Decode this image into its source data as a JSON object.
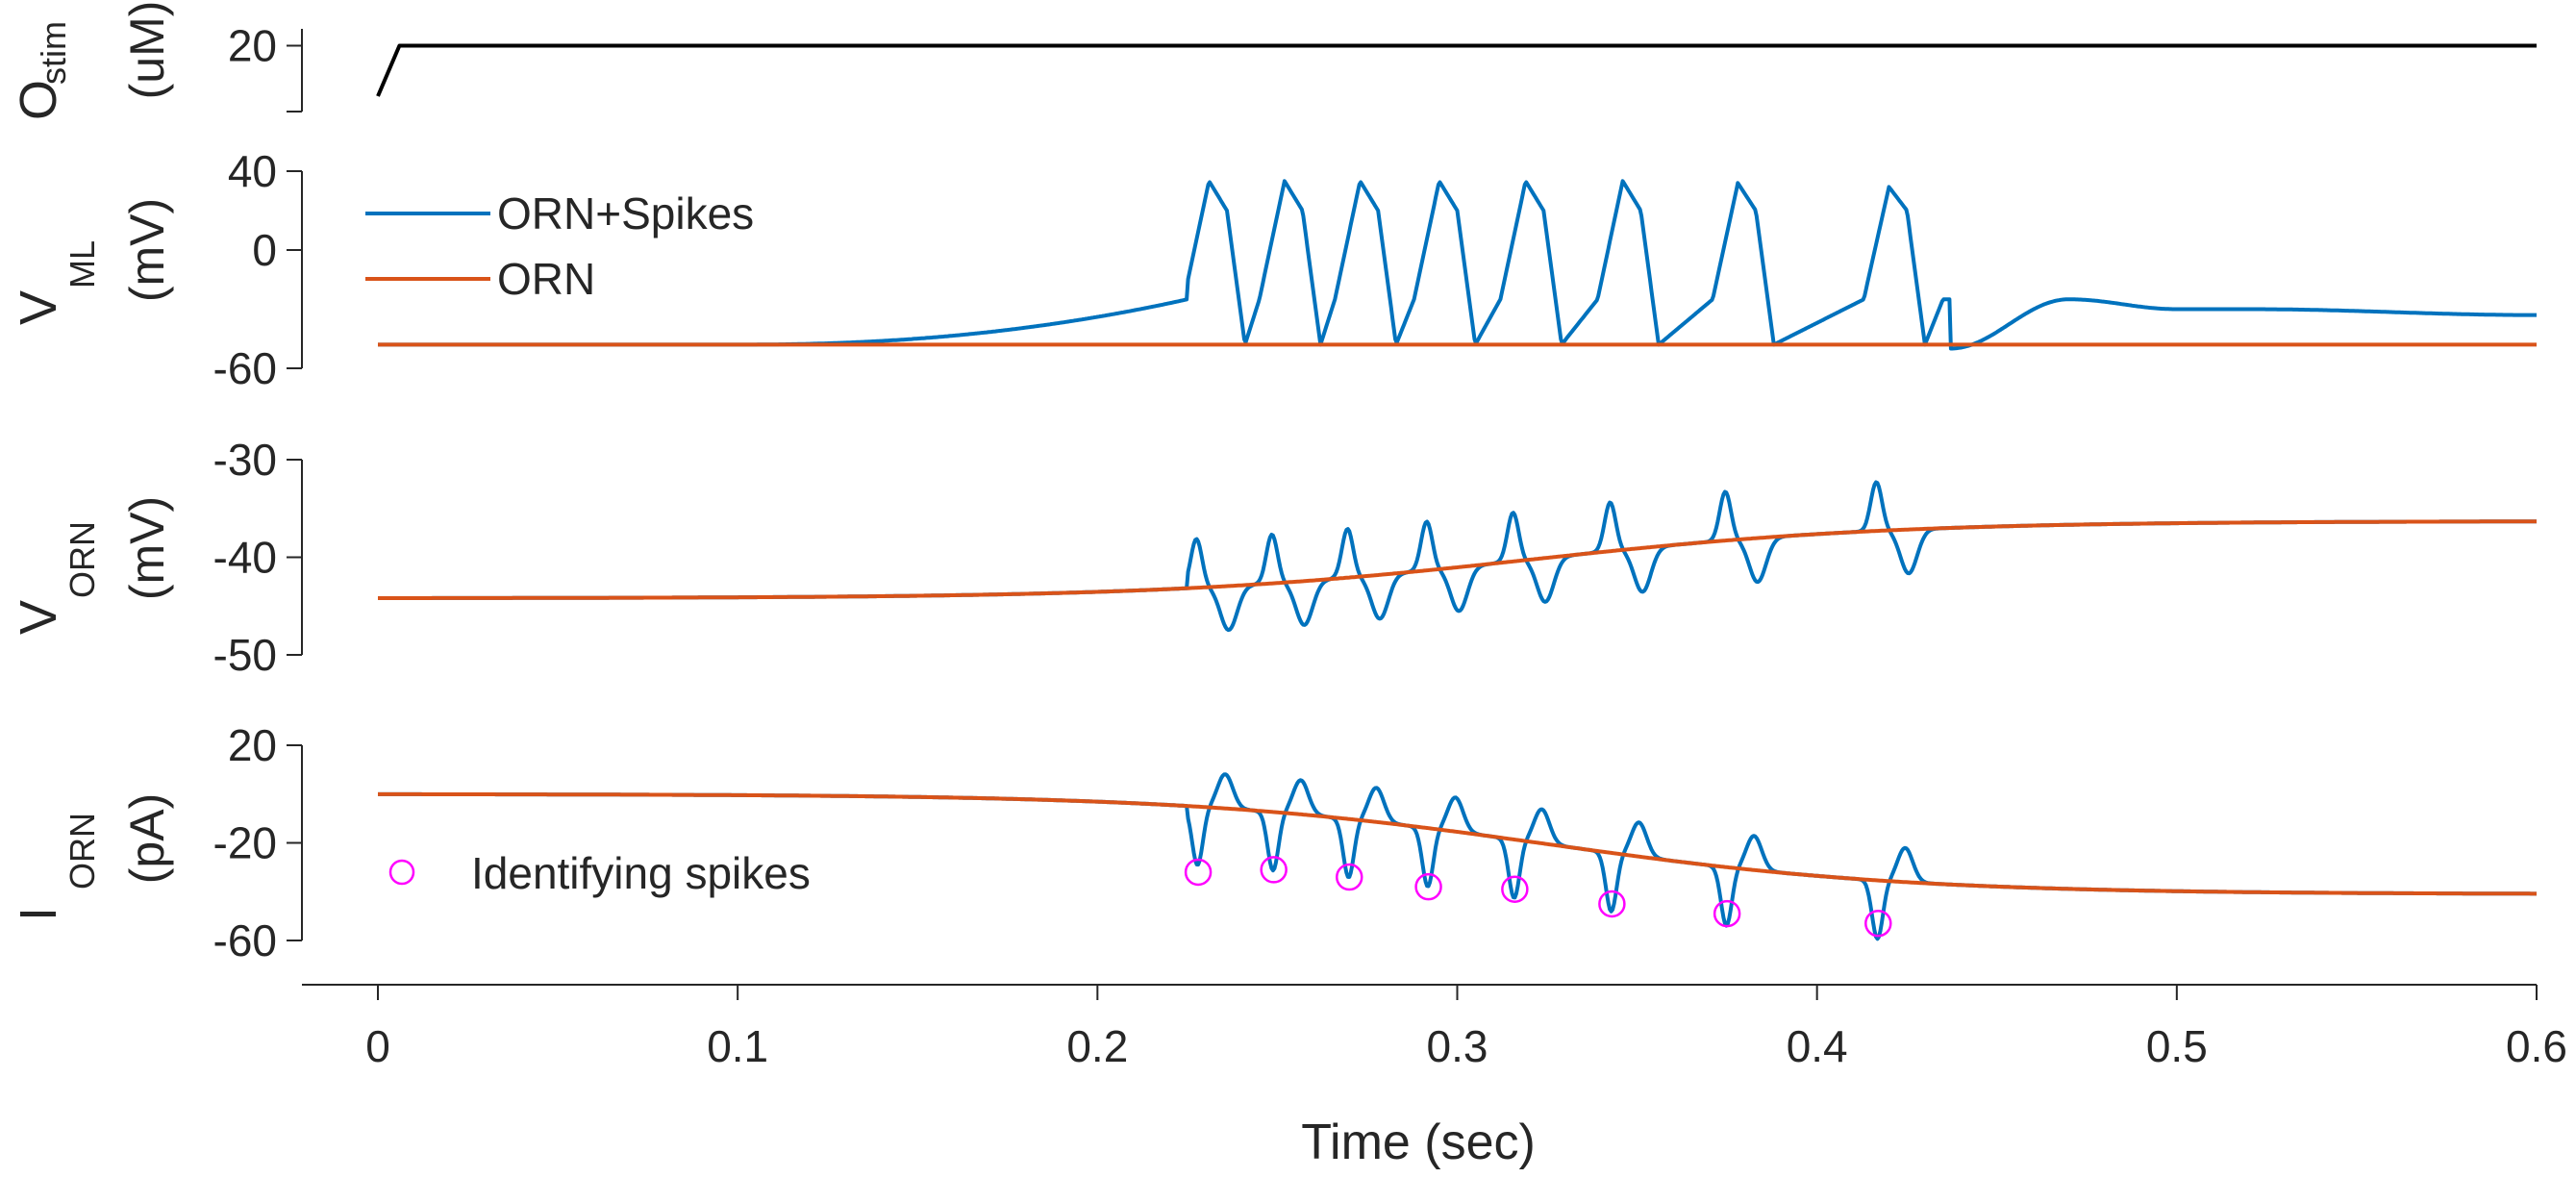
{
  "chart_data": {
    "type": "line",
    "xlabel": "Time (sec)",
    "xlim": [
      0,
      0.6
    ],
    "xticks": [
      "0",
      "0.1",
      "0.2",
      "0.3",
      "0.4",
      "0.5",
      "0.6"
    ],
    "colors": {
      "spikes": "#0072BD",
      "orn": "#D95319",
      "stim": "#000000",
      "marker": "#FF00FF"
    },
    "legend": {
      "spikes": "ORN+Spikes",
      "orn": "ORN",
      "marker": "Identifying spikes"
    },
    "panels": [
      {
        "id": "stim",
        "ylabel": {
          "main": "O",
          "sub": "stim",
          "unit": "(uM)"
        },
        "ylim": [
          17,
          21
        ],
        "yticks": [
          20
        ],
        "series": [
          {
            "name": "",
            "color": "black",
            "points": [
              [
                0,
                17
              ],
              [
                0.006,
                20
              ],
              [
                0.6,
                20
              ]
            ]
          }
        ]
      },
      {
        "id": "vml",
        "ylabel": {
          "main": "V",
          "sub": "ML",
          "unit": "(mV)"
        },
        "ylim": [
          -60,
          40
        ],
        "yticks": [
          40,
          0,
          -60
        ],
        "legend_position": "top-left",
        "series_generated": {
          "orn": {
            "baseline": -48
          },
          "spikes": {
            "rise_start": 0.1,
            "rise_end": 0.225,
            "rise_from": -48,
            "rise_to": -25,
            "spike_times": [
              0.228,
              0.249,
              0.27,
              0.292,
              0.316,
              0.343,
              0.375,
              0.417
            ],
            "spike_peak": [
              35,
              35,
              35,
              35,
              35,
              35,
              34,
              32
            ],
            "trough": -48,
            "tail": [
              [
                0.437,
                -50
              ],
              [
                0.47,
                -25
              ],
              [
                0.5,
                -30
              ],
              [
                0.52,
                -30
              ],
              [
                0.6,
                -33
              ]
            ]
          }
        }
      },
      {
        "id": "vorn",
        "ylabel": {
          "main": "V",
          "sub": "ORN",
          "unit": "(mV)"
        },
        "ylim": [
          -50,
          -30
        ],
        "yticks": [
          -30,
          -40,
          -50
        ],
        "series_generated": {
          "orn": {
            "start": -44.2,
            "end": -36.3,
            "mid": 0.32,
            "width": 0.05
          },
          "spikes": {
            "up": 5,
            "down": 4.5
          }
        }
      },
      {
        "id": "iorn",
        "ylabel": {
          "main": "I",
          "sub": "ORN",
          "unit": "(pA)"
        },
        "ylim": [
          -60,
          20
        ],
        "yticks": [
          20,
          -20,
          -60
        ],
        "legend_position": "bottom-left",
        "series_generated": {
          "orn": {
            "start": 0,
            "end": -41,
            "mid": 0.325,
            "width": 0.05
          },
          "spikes": {
            "up": 14,
            "down": 10
          }
        },
        "markers": {
          "x": [
            0.228,
            0.249,
            0.27,
            0.292,
            0.316,
            0.343,
            0.375,
            0.417
          ],
          "y": [
            -32,
            -31,
            -34,
            -38,
            -39,
            -45,
            -49,
            -53
          ]
        }
      }
    ]
  }
}
